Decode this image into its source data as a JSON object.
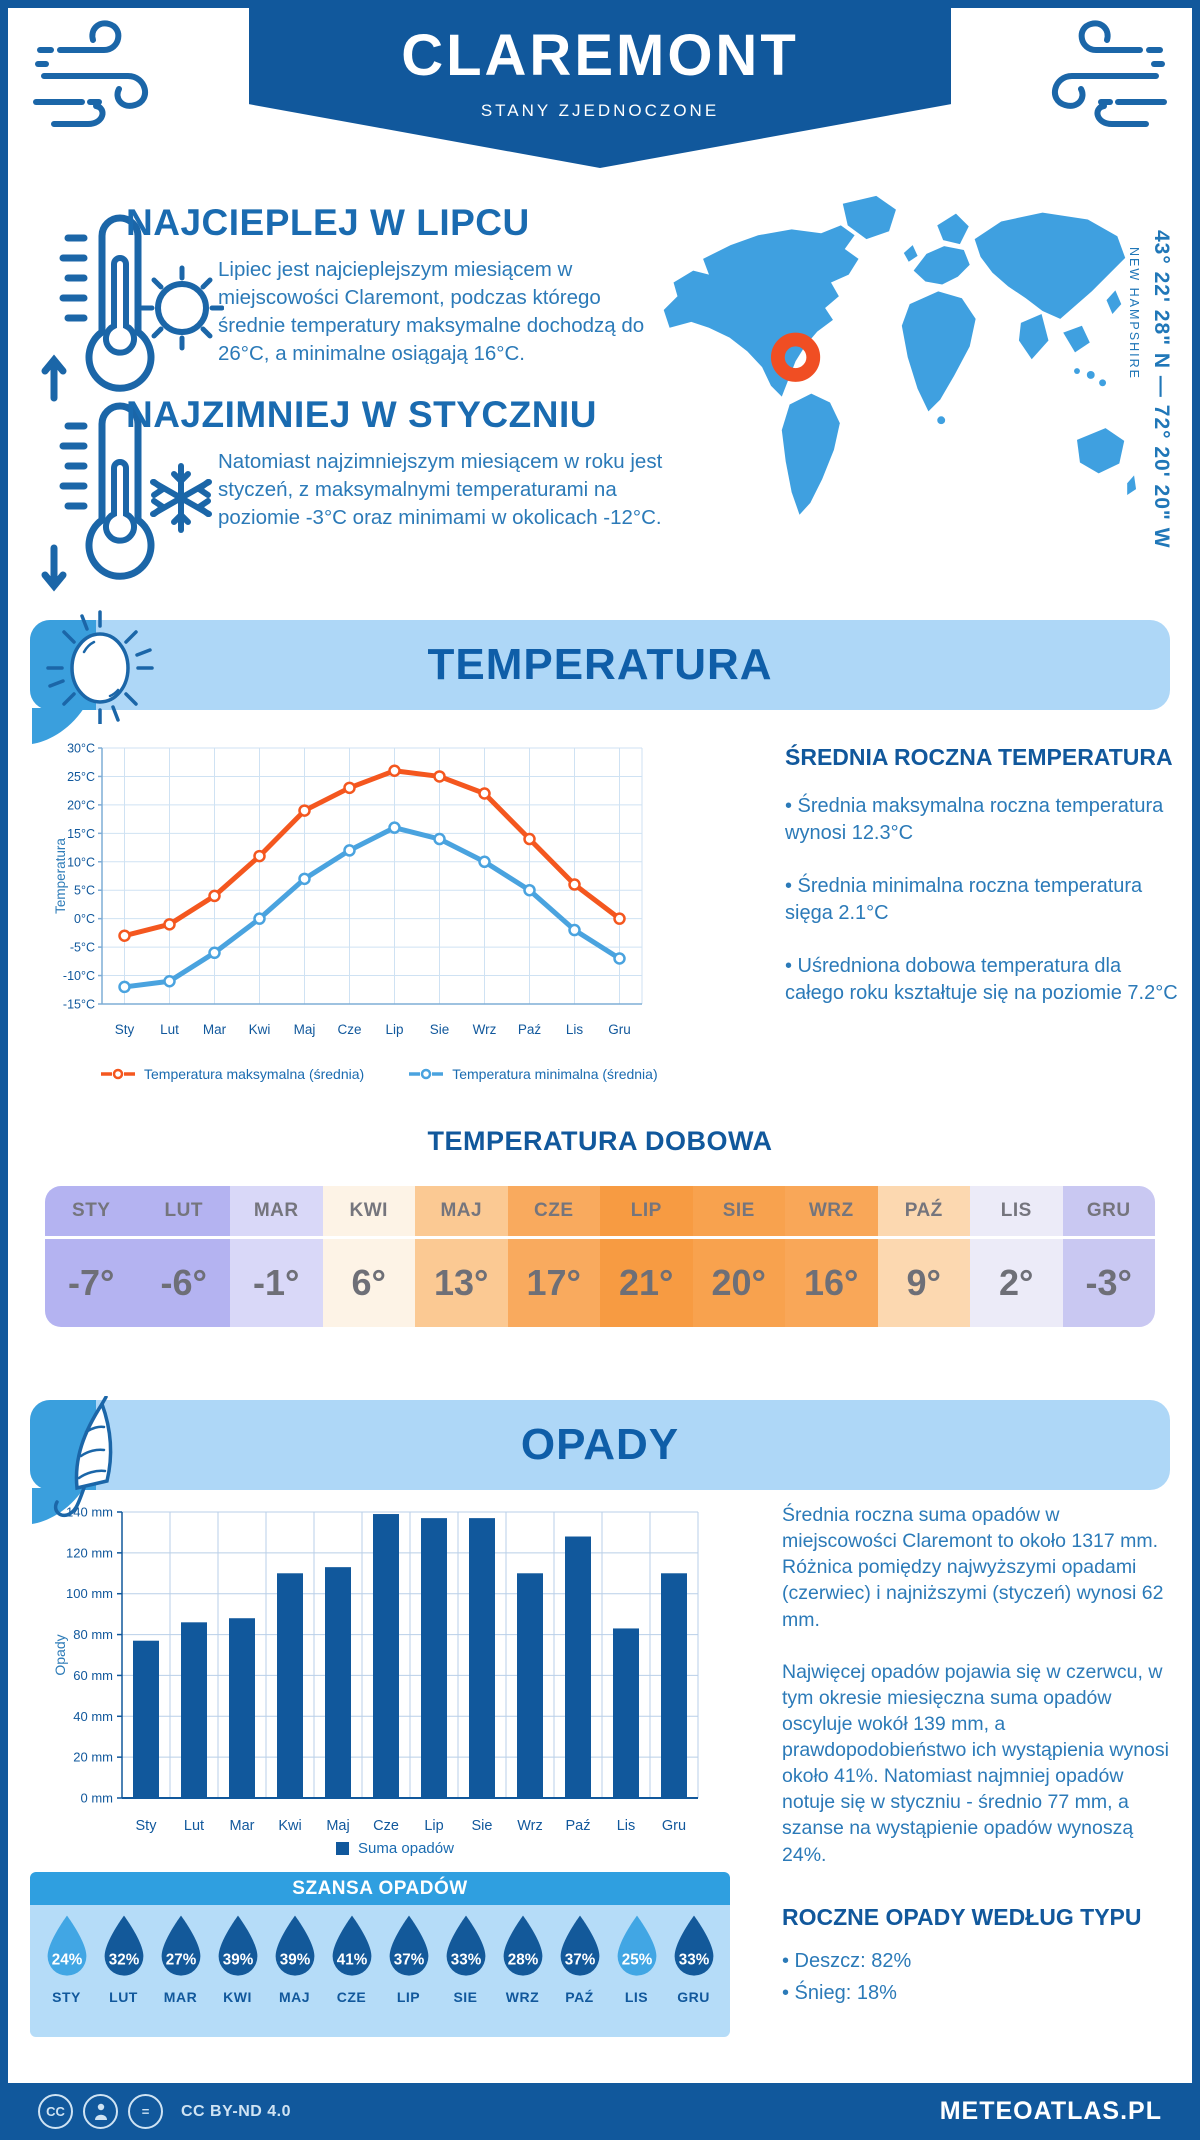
{
  "header": {
    "title": "CLAREMONT",
    "subtitle": "STANY ZJEDNOCZONE"
  },
  "geo": {
    "coordinates": "43° 22' 28\" N — 72° 20' 20\" W",
    "region": "NEW HAMPSHIRE"
  },
  "warm": {
    "title": "NAJCIEPLEJ W LIPCU",
    "text": "Lipiec jest najcieplejszym miesiącem w miejscowości Claremont, podczas którego średnie temperatury maksymalne dochodzą do 26°C, a minimalne osiągają 16°C."
  },
  "cold": {
    "title": "NAJZIMNIEJ W STYCZNIU",
    "text": "Natomiast najzimniejszym miesiącem w roku jest styczeń, z maksymalnymi temperaturami na poziomie -3°C oraz minimami w okolicach -12°C."
  },
  "temp": {
    "banner": "TEMPERATURA",
    "annual": {
      "title": "ŚREDNIA ROCZNA TEMPERATURA",
      "bullets": [
        "• Średnia maksymalna roczna temperatura wynosi 12.3°C",
        "• Średnia minimalna roczna temperatura sięga 2.1°C",
        "• Uśredniona dobowa temperatura dla całego roku kształtuje się na poziomie 7.2°C"
      ]
    },
    "daily_title": "TEMPERATURA DOBOWA",
    "daily_table": {
      "months": [
        {
          "label": "STY",
          "value": "-7°",
          "color": "#b4b3f1"
        },
        {
          "label": "LUT",
          "value": "-6°",
          "color": "#b4b3f1"
        },
        {
          "label": "MAR",
          "value": "-1°",
          "color": "#d9d8f8"
        },
        {
          "label": "KWI",
          "value": "6°",
          "color": "#fdf3e6"
        },
        {
          "label": "MAJ",
          "value": "13°",
          "color": "#fbc993"
        },
        {
          "label": "CZE",
          "value": "17°",
          "color": "#f9aa5e"
        },
        {
          "label": "LIP",
          "value": "21°",
          "color": "#f79b42"
        },
        {
          "label": "SIE",
          "value": "20°",
          "color": "#f8a24e"
        },
        {
          "label": "WRZ",
          "value": "16°",
          "color": "#f9a758"
        },
        {
          "label": "PAŹ",
          "value": "9°",
          "color": "#fcd8b0"
        },
        {
          "label": "LIS",
          "value": "2°",
          "color": "#ecebf8"
        },
        {
          "label": "GRU",
          "value": "-3°",
          "color": "#c9c8f2"
        }
      ]
    }
  },
  "precip": {
    "banner": "OPADY",
    "p1": "Średnia roczna suma opadów w miejscowości Claremont to około 1317 mm. Różnica pomiędzy najwyższymi opadami (czerwiec) i najniższymi (styczeń) wynosi 62 mm.",
    "p2": "Najwięcej opadów pojawia się w czerwcu, w tym okresie miesięczna suma opadów oscyluje wokół 139 mm, a prawdopodobieństwo ich wystąpienia wynosi około 41%. Natomiast najmniej opadów notuje się w styczniu - średnio 77 mm, a szanse na wystąpienie opadów wynoszą 24%.",
    "type": {
      "title": "ROCZNE OPADY WEDŁUG TYPU",
      "bullets": [
        "• Deszcz: 82%",
        "• Śnieg: 18%"
      ]
    },
    "chance": {
      "title": "SZANSA OPADÓW",
      "months": [
        {
          "label": "STY",
          "value": "24%",
          "color": "#41a6e4"
        },
        {
          "label": "LUT",
          "value": "32%",
          "color": "#13599a"
        },
        {
          "label": "MAR",
          "value": "27%",
          "color": "#13599a"
        },
        {
          "label": "KWI",
          "value": "39%",
          "color": "#13599a"
        },
        {
          "label": "MAJ",
          "value": "39%",
          "color": "#13599a"
        },
        {
          "label": "CZE",
          "value": "41%",
          "color": "#13599a"
        },
        {
          "label": "LIP",
          "value": "37%",
          "color": "#13599a"
        },
        {
          "label": "SIE",
          "value": "33%",
          "color": "#13599a"
        },
        {
          "label": "WRZ",
          "value": "28%",
          "color": "#13599a"
        },
        {
          "label": "PAŹ",
          "value": "37%",
          "color": "#13599a"
        },
        {
          "label": "LIS",
          "value": "25%",
          "color": "#41a6e4"
        },
        {
          "label": "GRU",
          "value": "33%",
          "color": "#13599a"
        }
      ]
    }
  },
  "chart_data": [
    {
      "type": "line",
      "categories": [
        "Sty",
        "Lut",
        "Mar",
        "Kwi",
        "Maj",
        "Cze",
        "Lip",
        "Sie",
        "Wrz",
        "Paź",
        "Lis",
        "Gru"
      ],
      "series": [
        {
          "name": "Temperatura maksymalna (średnia)",
          "color": "#f4571f",
          "values": [
            -3,
            -1,
            4,
            11,
            19,
            23,
            26,
            25,
            22,
            14,
            6,
            0
          ]
        },
        {
          "name": "Temperatura minimalna (średnia)",
          "color": "#4aa3df",
          "values": [
            -12,
            -11,
            -6,
            0,
            7,
            12,
            16,
            14,
            10,
            5,
            -2,
            -7
          ]
        }
      ],
      "title": "TEMPERATURA",
      "xlabel": "",
      "ylabel": "Temperatura",
      "ylim": [
        -15,
        30
      ],
      "ytick_step": 5,
      "yunit": "°C",
      "grid": true,
      "legend_position": "bottom"
    },
    {
      "type": "bar",
      "categories": [
        "Sty",
        "Lut",
        "Mar",
        "Kwi",
        "Maj",
        "Cze",
        "Lip",
        "Sie",
        "Wrz",
        "Paź",
        "Lis",
        "Gru"
      ],
      "series": [
        {
          "name": "Suma opadów",
          "color": "#11589c",
          "values": [
            77,
            86,
            88,
            110,
            113,
            139,
            137,
            137,
            110,
            128,
            83,
            110
          ]
        }
      ],
      "title": "OPADY",
      "xlabel": "",
      "ylabel": "Opady",
      "ylim": [
        0,
        140
      ],
      "ytick_step": 20,
      "yunit": " mm",
      "grid": true,
      "legend_position": "bottom"
    }
  ],
  "footer": {
    "license": "CC BY-ND 4.0",
    "brand": "METEOATLAS.PL"
  }
}
